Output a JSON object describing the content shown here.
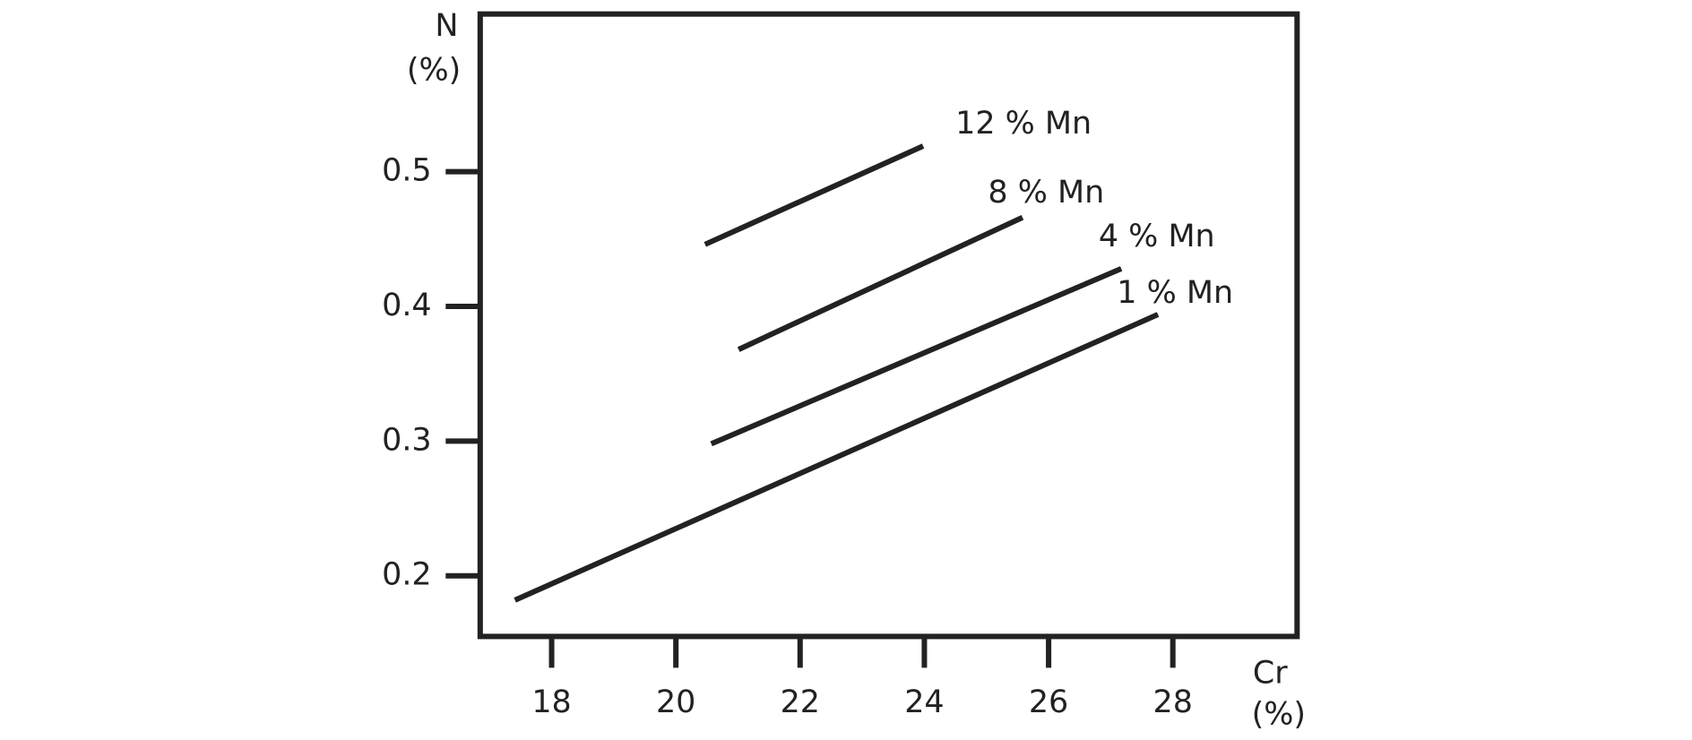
{
  "chart_data": {
    "type": "line",
    "xlabel": [
      "Cr",
      "(%)"
    ],
    "ylabel": [
      "N",
      "(%)"
    ],
    "xlim": [
      16.85,
      30.0
    ],
    "ylim": [
      0.155,
      0.617
    ],
    "xticks": [
      18,
      20,
      22,
      24,
      26,
      28
    ],
    "yticks": [
      0.2,
      0.3,
      0.4,
      0.5
    ],
    "series": [
      {
        "name": "12 % Mn",
        "color": "#222222",
        "x": [
          20.47,
          23.98
        ],
        "values": [
          0.446,
          0.519
        ]
      },
      {
        "name": "8 % Mn",
        "color": "#222222",
        "x": [
          21.01,
          25.58
        ],
        "values": [
          0.368,
          0.466
        ]
      },
      {
        "name": "4 % Mn",
        "color": "#222222",
        "x": [
          20.57,
          27.17
        ],
        "values": [
          0.298,
          0.428
        ]
      },
      {
        "name": "1 % Mn",
        "color": "#222222",
        "x": [
          17.41,
          27.76
        ],
        "values": [
          0.182,
          0.394
        ]
      }
    ]
  }
}
